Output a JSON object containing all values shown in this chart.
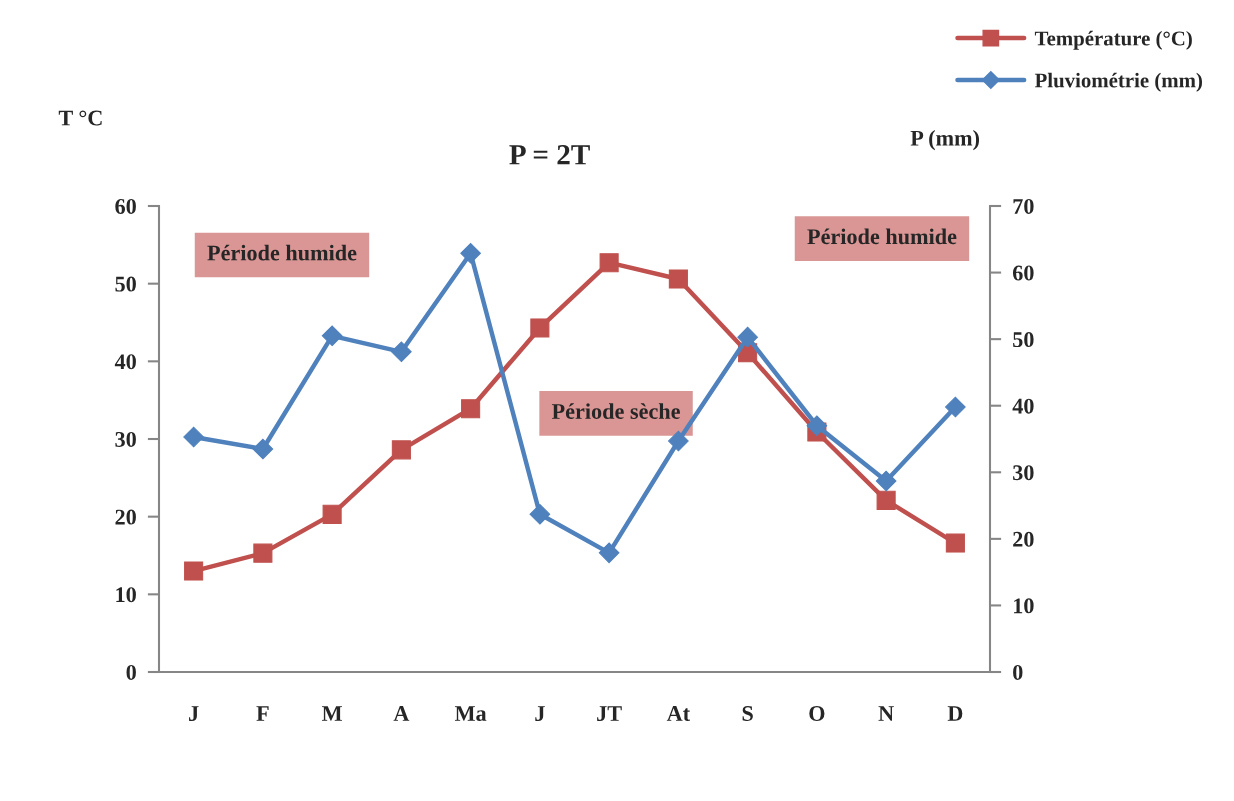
{
  "chart_data": {
    "type": "line",
    "title": "P = 2T",
    "ylabel": "T °C",
    "y2label": "P (mm)",
    "categories": [
      "J",
      "F",
      "M",
      "A",
      "Ma",
      "J",
      "JT",
      "At",
      "S",
      "O",
      "N",
      "D"
    ],
    "series": [
      {
        "name": "Température (°C)",
        "color": "#c0504d",
        "marker": "square",
        "values": [
          13.0,
          15.3,
          20.3,
          28.6,
          33.9,
          44.3,
          52.7,
          50.6,
          41.1,
          30.9,
          22.1,
          16.6
        ]
      },
      {
        "name": "Pluviométrie (mm)",
        "color": "#4f81bd",
        "marker": "diamond",
        "axis": "y2",
        "values": [
          35.3,
          33.5,
          50.5,
          48.1,
          62.9,
          23.7,
          17.9,
          34.7,
          50.3,
          37.0,
          28.7,
          39.8
        ]
      }
    ],
    "ylim": [
      0,
      60
    ],
    "yticks": [
      0,
      10,
      20,
      30,
      40,
      50,
      60
    ],
    "y2lim": [
      0,
      70
    ],
    "y2ticks": [
      0,
      10,
      20,
      30,
      40,
      50,
      60,
      70
    ],
    "legend": "top right",
    "annotations": [
      "Période humide",
      "Période sèche",
      "Période humide"
    ]
  }
}
